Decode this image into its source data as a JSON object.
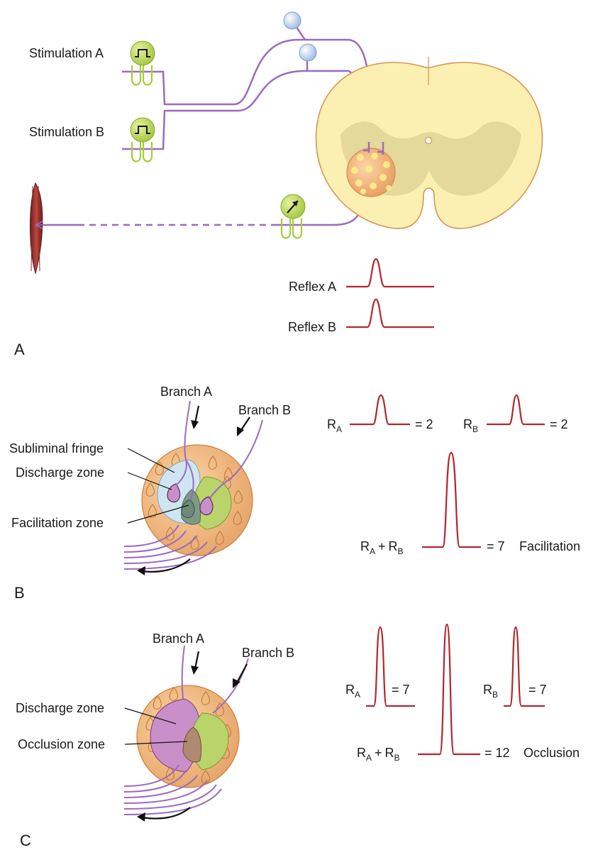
{
  "panel_a": {
    "letter": "A",
    "stim_a": "Stimulation A",
    "stim_b": "Stimulation B",
    "reflex_a": "Reflex A",
    "reflex_b": "Reflex B"
  },
  "panel_b": {
    "letter": "B",
    "branch_a": "Branch A",
    "branch_b": "Branch B",
    "subliminal_fringe": "Subliminal fringe",
    "discharge_zone": "Discharge zone",
    "facilitation_zone": "Facilitation zone",
    "r": "R",
    "sub_a": "A",
    "sub_b": "B",
    "plus": "+",
    "ra_value": "= 2",
    "rb_value": "= 2",
    "sum_value": "= 7",
    "sum_label": "Facilitation"
  },
  "panel_c": {
    "letter": "C",
    "branch_a": "Branch A",
    "branch_b": "Branch B",
    "discharge_zone": "Discharge zone",
    "occlusion_zone": "Occlusion zone",
    "r": "R",
    "sub_a": "A",
    "sub_b": "B",
    "plus": "+",
    "ra_value": "= 7",
    "rb_value": "= 7",
    "sum_value": "= 12",
    "sum_label": "Occlusion"
  },
  "colors": {
    "nerve": "#9b6bbf",
    "reflex_trace": "#b1282e",
    "spinal_outer": "#fbefb2",
    "spinal_gray": "#e4d89a",
    "pool_orange": "#eaa86b",
    "electrode_green": "#a6cc3a",
    "subliminal_blue": "#cfe6f2",
    "discharge_purple": "#c98fc8",
    "facilitation_green": "#b8d46a"
  }
}
